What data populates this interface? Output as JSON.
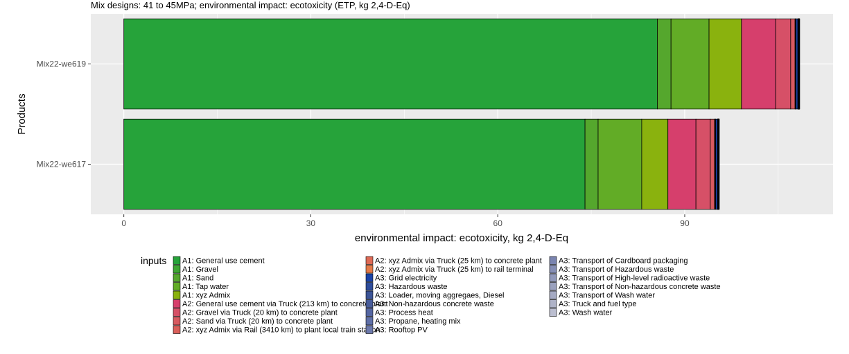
{
  "chart_data": {
    "type": "bar",
    "orientation": "horizontal",
    "stacked": true,
    "title": "Mix designs: 41 to 45MPa; environmental impact: ecotoxicity (ETP, kg 2,4-D-Eq)",
    "xlabel": "environmental impact: ecotoxicity, kg 2,4-D-Eq",
    "ylabel": "Products",
    "xlim": [
      -5.3,
      113.8
    ],
    "xticks": [
      "0",
      "30",
      "60",
      "90"
    ],
    "xtick_values": [
      0,
      30,
      60,
      90
    ],
    "grid": true,
    "legend_title": "inputs",
    "legend_position": "bottom",
    "categories": [
      "Mix22-we619",
      "Mix22-we617"
    ],
    "series": [
      {
        "name": "A1: General use cement",
        "color": "#26A33A",
        "values": [
          85.6,
          74.0
        ]
      },
      {
        "name": "A1: Gravel",
        "color": "#3EA633",
        "values": [
          0,
          0
        ]
      },
      {
        "name": "A1: Sand",
        "color": "#55A72D",
        "values": [
          2.2,
          2.1
        ]
      },
      {
        "name": "A1: Tap water",
        "color": "#62AC26",
        "values": [
          6.1,
          7.0
        ]
      },
      {
        "name": "A1: xyz Admix",
        "color": "#8AB20E",
        "values": [
          5.2,
          4.2
        ]
      },
      {
        "name": "A2: General use cement via Truck (213 km) to concrete plant",
        "color": "#D63F6C",
        "values": [
          5.5,
          4.5
        ]
      },
      {
        "name": "A2: Gravel via Truck (20 km) to concrete plant",
        "color": "#D65067",
        "values": [
          2.4,
          2.3
        ]
      },
      {
        "name": "A2: Sand via Truck (20 km) to concrete plant",
        "color": "#D85A60",
        "values": [
          0.7,
          0.7
        ]
      },
      {
        "name": "A2: xyz Admix via Rail (3410 km) to plant local train station",
        "color": "#DA5F5A",
        "values": [
          0.05,
          0.05
        ]
      },
      {
        "name": "A2: xyz Admix via Truck (25 km) to concrete plant",
        "color": "#DE6A55",
        "values": [
          0.05,
          0.05
        ]
      },
      {
        "name": "A2: xyz Admix via Truck (25 km) to rail terminal",
        "color": "#E47A48",
        "values": [
          0.05,
          0.05
        ]
      },
      {
        "name": "A3: Grid electricity",
        "color": "#1A43A8",
        "values": [
          0.3,
          0.3
        ]
      },
      {
        "name": "A3: Hazardous waste",
        "color": "#2E4C9B",
        "values": [
          0.02,
          0.02
        ]
      },
      {
        "name": "A3: Loader, moving aggregaes, Diesel",
        "color": "#3C5496",
        "values": [
          0.02,
          0.02
        ]
      },
      {
        "name": "A3: Non-hazardous concrete waste",
        "color": "#485C9A",
        "values": [
          0.02,
          0.02
        ]
      },
      {
        "name": "A3: Process heat",
        "color": "#5566A2",
        "values": [
          0.02,
          0.02
        ]
      },
      {
        "name": "A3: Propane, heating mix",
        "color": "#6070A8",
        "values": [
          0.02,
          0.02
        ]
      },
      {
        "name": "A3: Rooftop PV",
        "color": "#6C79AC",
        "values": [
          0.02,
          0.02
        ]
      },
      {
        "name": "A3: Transport of Cardboard packaging",
        "color": "#7A84B0",
        "values": [
          0.02,
          0.02
        ]
      },
      {
        "name": "A3: Transport of Hazardous waste",
        "color": "#858EB5",
        "values": [
          0.02,
          0.02
        ]
      },
      {
        "name": "A3: Transport of High-level radioactive waste",
        "color": "#9098BA",
        "values": [
          0.02,
          0.02
        ]
      },
      {
        "name": "A3: Transport of Non-hazardous concrete waste",
        "color": "#9AA1BE",
        "values": [
          0.02,
          0.02
        ]
      },
      {
        "name": "A3: Transport of Wash water",
        "color": "#A5AAC3",
        "values": [
          0.02,
          0.02
        ]
      },
      {
        "name": "A3: Truck and fuel type",
        "color": "#AFB3C8",
        "values": [
          0.02,
          0.02
        ]
      },
      {
        "name": "A3: Wash water",
        "color": "#BBBED0",
        "values": [
          0.02,
          0.02
        ]
      }
    ]
  }
}
